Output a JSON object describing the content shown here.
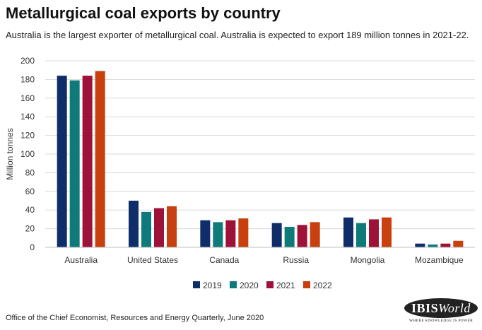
{
  "title": "Metallurgical coal exports by country",
  "subtitle": "Australia is the largest exporter of metallurgical coal. Australia is expected to export 189 million tonnes in 2021-22.",
  "source": "Office of the Chief Economist, Resources and Energy Quarterly, June 2020",
  "logo": {
    "main_text": "IBISWorld",
    "tagline": "WHERE KNOWLEDGE IS POWER"
  },
  "chart_data": {
    "type": "bar",
    "title": "",
    "xlabel": "",
    "ylabel": "Million tonnes",
    "ylim": [
      0,
      200
    ],
    "yticks": [
      0,
      20,
      40,
      60,
      80,
      100,
      120,
      140,
      160,
      180,
      200
    ],
    "grid": true,
    "legend_position": "bottom-center",
    "categories": [
      "Australia",
      "United States",
      "Canada",
      "Russia",
      "Mongolia",
      "Mozambique"
    ],
    "series": [
      {
        "name": "2019",
        "color": "#0f2d69",
        "values": [
          184,
          50,
          29,
          26,
          32,
          4
        ]
      },
      {
        "name": "2020",
        "color": "#0f7a7a",
        "values": [
          179,
          38,
          27,
          22,
          26,
          3
        ]
      },
      {
        "name": "2021",
        "color": "#9c1239",
        "values": [
          184,
          42,
          29,
          24,
          30,
          4
        ]
      },
      {
        "name": "2022",
        "color": "#c8400e",
        "values": [
          189,
          44,
          31,
          27,
          32,
          7
        ]
      }
    ]
  }
}
